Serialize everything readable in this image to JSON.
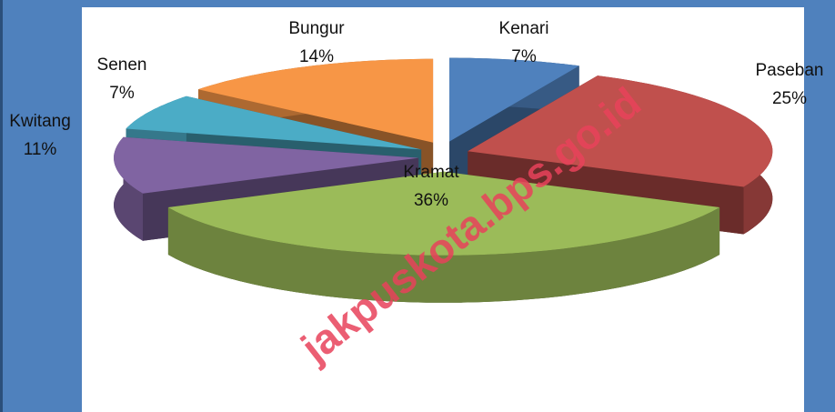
{
  "chart_data": {
    "type": "pie",
    "categories": [
      "Kenari",
      "Paseban",
      "Kramat",
      "Kwitang",
      "Senen",
      "Bungur"
    ],
    "values": [
      7,
      25,
      36,
      11,
      7,
      14
    ],
    "value_labels": [
      "7%",
      "25%",
      "36%",
      "11%",
      "7%",
      "14%"
    ],
    "colors": [
      "#4f81bd",
      "#c0504d",
      "#9bbb59",
      "#8064a2",
      "#4bacc6",
      "#f79646"
    ],
    "watermark": "jakpuskota.bps.go.id"
  }
}
